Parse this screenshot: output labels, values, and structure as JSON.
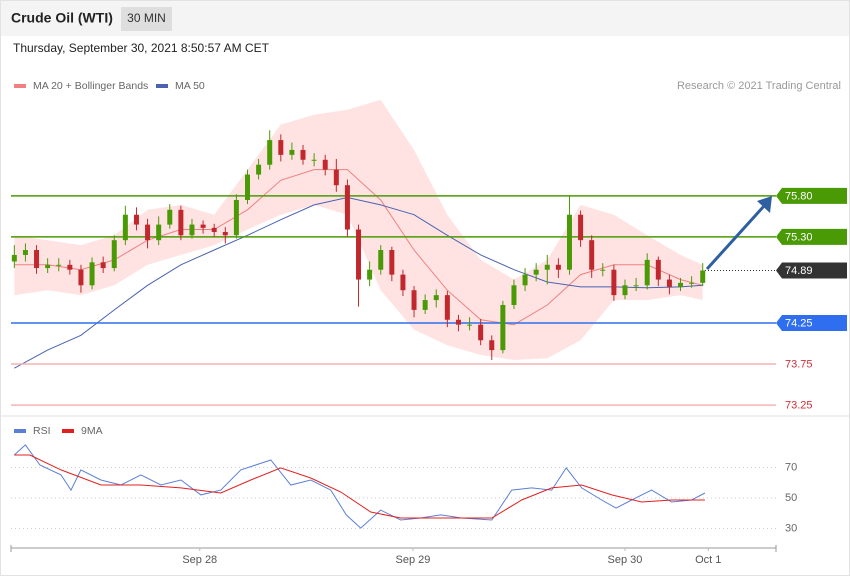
{
  "header": {
    "title": "Crude Oil (WTI)",
    "interval": "30 MIN",
    "timestamp": "Thursday, September 30, 2021 8:50:57 AM CET",
    "credit": "Research © 2021 Trading Central"
  },
  "chart_data": [
    {
      "type": "candlestick",
      "xlim": [
        -0.3,
        68.6
      ],
      "ylim": [
        73.19,
        77.7
      ],
      "up_color": "#4a9a06",
      "down_color": "#c0282d",
      "x": [
        0,
        1,
        2,
        3,
        4,
        5,
        6,
        7,
        8,
        9,
        10,
        11,
        12,
        13,
        14,
        15,
        16,
        17,
        18,
        19,
        20,
        21,
        22,
        23,
        24,
        25,
        26,
        27,
        28,
        29,
        30,
        31,
        32,
        33,
        34,
        35,
        36,
        37,
        38,
        39,
        40,
        41,
        42,
        43,
        44,
        45,
        46,
        47,
        48,
        49,
        50,
        51,
        52,
        53,
        54,
        55,
        56,
        57,
        58,
        59,
        60,
        61,
        62
      ],
      "open": [
        75.0,
        75.08,
        75.14,
        74.92,
        74.96,
        74.96,
        74.9,
        74.71,
        74.99,
        74.92,
        75.26,
        75.57,
        75.45,
        75.26,
        75.45,
        75.63,
        75.32,
        75.45,
        75.41,
        75.36,
        75.32,
        75.75,
        76.06,
        76.18,
        76.48,
        76.3,
        76.36,
        76.24,
        76.24,
        76.12,
        75.93,
        75.39,
        74.78,
        74.9,
        75.14,
        74.84,
        74.65,
        74.41,
        74.53,
        74.59,
        74.29,
        74.23,
        74.23,
        74.04,
        73.92,
        74.47,
        74.71,
        74.84,
        74.9,
        74.96,
        74.9,
        75.57,
        75.26,
        74.9,
        74.9,
        74.59,
        74.71,
        74.71,
        75.02,
        74.78,
        74.69,
        74.74,
        74.74
      ],
      "high": [
        75.2,
        75.22,
        75.2,
        75.04,
        75.04,
        75.02,
        74.96,
        75.05,
        75.06,
        75.32,
        75.68,
        75.66,
        75.52,
        75.55,
        75.7,
        75.68,
        75.52,
        75.5,
        75.46,
        75.42,
        75.82,
        76.12,
        76.25,
        76.6,
        76.55,
        76.45,
        76.42,
        76.32,
        76.3,
        76.25,
        76.0,
        75.45,
        75.0,
        75.2,
        75.18,
        74.9,
        74.7,
        74.6,
        74.66,
        74.64,
        74.35,
        74.32,
        74.3,
        74.1,
        74.52,
        74.78,
        74.92,
        74.98,
        75.08,
        75.04,
        75.8,
        75.62,
        75.32,
        74.98,
        74.96,
        74.78,
        74.8,
        75.1,
        75.06,
        74.84,
        74.8,
        74.82,
        74.98
      ],
      "low": [
        74.92,
        75.0,
        74.85,
        74.86,
        74.88,
        74.84,
        74.62,
        74.66,
        74.86,
        74.88,
        75.2,
        75.38,
        75.16,
        75.2,
        75.4,
        75.26,
        75.28,
        75.34,
        75.3,
        75.22,
        75.28,
        75.7,
        76.0,
        76.12,
        76.22,
        76.24,
        76.18,
        76.16,
        76.05,
        75.85,
        75.3,
        74.45,
        74.7,
        74.84,
        74.76,
        74.58,
        74.32,
        74.36,
        74.44,
        74.2,
        74.15,
        74.16,
        73.98,
        73.8,
        73.88,
        74.42,
        74.64,
        74.76,
        74.72,
        74.8,
        74.84,
        75.18,
        74.8,
        74.82,
        74.52,
        74.54,
        74.64,
        74.66,
        74.7,
        74.6,
        74.64,
        74.68,
        74.7
      ],
      "close": [
        75.08,
        75.14,
        74.92,
        74.96,
        74.96,
        74.9,
        74.71,
        74.99,
        74.92,
        75.26,
        75.57,
        75.45,
        75.26,
        75.45,
        75.63,
        75.32,
        75.45,
        75.41,
        75.36,
        75.32,
        75.75,
        76.06,
        76.18,
        76.48,
        76.3,
        76.36,
        76.24,
        76.24,
        76.12,
        75.93,
        75.39,
        74.78,
        74.9,
        75.14,
        74.84,
        74.65,
        74.41,
        74.53,
        74.59,
        74.29,
        74.23,
        74.23,
        74.04,
        73.92,
        74.47,
        74.71,
        74.84,
        74.9,
        74.96,
        74.9,
        75.57,
        75.26,
        74.9,
        74.9,
        74.59,
        74.71,
        74.71,
        75.02,
        74.78,
        74.69,
        74.74,
        74.74,
        74.89
      ],
      "overlays": [
        {
          "name": "MA 20 + Bollinger Bands",
          "color": "#f08080",
          "band_color": "#ffd9d9",
          "x": [
            0,
            3,
            6,
            9,
            12,
            15,
            18,
            21,
            24,
            27,
            30,
            33,
            36,
            39,
            42,
            45,
            48,
            51,
            54,
            57,
            60,
            62
          ],
          "values": [
            74.96,
            74.96,
            74.9,
            75.02,
            75.26,
            75.39,
            75.39,
            75.63,
            75.99,
            76.12,
            76.12,
            75.75,
            75.14,
            74.65,
            74.29,
            74.23,
            74.47,
            74.84,
            74.96,
            74.96,
            74.78,
            74.71
          ],
          "upper": [
            75.32,
            75.26,
            75.2,
            75.32,
            75.63,
            75.69,
            75.57,
            76.12,
            76.67,
            76.79,
            76.85,
            76.97,
            76.36,
            75.57,
            75.02,
            74.78,
            75.02,
            75.69,
            75.57,
            75.32,
            75.08,
            74.96
          ],
          "lower": [
            74.59,
            74.65,
            74.59,
            74.71,
            74.96,
            75.08,
            75.2,
            75.39,
            75.57,
            75.69,
            75.57,
            74.65,
            74.17,
            73.98,
            73.86,
            73.8,
            73.82,
            74.04,
            74.53,
            74.53,
            74.59,
            74.53
          ]
        },
        {
          "name": "MA 50",
          "color": "#4a62b0",
          "x": [
            0,
            3,
            6,
            9,
            12,
            15,
            18,
            21,
            24,
            27,
            30,
            33,
            36,
            39,
            42,
            45,
            48,
            51,
            54,
            57,
            60,
            62
          ],
          "values": [
            73.7,
            73.92,
            74.1,
            74.41,
            74.71,
            74.96,
            75.14,
            75.32,
            75.51,
            75.69,
            75.78,
            75.69,
            75.57,
            75.32,
            75.08,
            74.9,
            74.75,
            74.69,
            74.69,
            74.68,
            74.69,
            74.71
          ]
        }
      ],
      "levels": [
        {
          "value": 75.8,
          "label": "75.80",
          "color": "#4a9a06",
          "box": true
        },
        {
          "value": 75.3,
          "label": "75.30",
          "color": "#4a9a06",
          "box": true
        },
        {
          "value": 74.89,
          "color": "#333333",
          "box": true,
          "dotted": true
        },
        {
          "value": 74.25,
          "color": "#2f6fef",
          "box": true
        },
        {
          "value": 73.75,
          "color": "#f4b4b4",
          "text_color": "#d0303a",
          "box": false
        },
        {
          "value": 73.25,
          "color": "#f4b4b4",
          "text_color": "#d0303a",
          "box": false
        }
      ]
    },
    {
      "type": "line",
      "xlim": [
        -0.3,
        68.6
      ],
      "ylim": [
        19.2,
        88
      ],
      "yticks": [
        30,
        50,
        70
      ],
      "grid": true,
      "xticks": [
        {
          "value": 16.7,
          "label": "Sep 28"
        },
        {
          "value": 35.9,
          "label": "Sep 29"
        },
        {
          "value": 55.0,
          "label": "Sep 30"
        },
        {
          "value": 62.5,
          "label": "Oct 1"
        }
      ],
      "series": [
        {
          "name": "RSI",
          "color": "#5b7fd6",
          "x": [
            0,
            1,
            2.3,
            4.2,
            5.1,
            6,
            7.8,
            9.6,
            11.4,
            13.2,
            15,
            16.8,
            18.6,
            20.4,
            23.1,
            24.9,
            26.7,
            28.5,
            29.9,
            31.2,
            33,
            34.8,
            36.6,
            38.4,
            40.3,
            43,
            44.8,
            46.6,
            48.4,
            49.7,
            51.1,
            52.9,
            54.2,
            55.6,
            57.4,
            59.2,
            61,
            62.2
          ],
          "values": [
            78.2,
            84.8,
            71.6,
            65.1,
            55.2,
            68.4,
            61.8,
            58.5,
            65.1,
            58.5,
            61.8,
            52.0,
            55.2,
            68.4,
            74.9,
            58.5,
            61.8,
            55.2,
            38.9,
            30.3,
            42.1,
            35.6,
            36.9,
            38.9,
            36.9,
            35.6,
            55.2,
            56.6,
            55.2,
            69.7,
            56.6,
            48.7,
            43.4,
            48.7,
            55.2,
            47.4,
            48.7,
            53.3
          ]
        },
        {
          "name": "9MA",
          "color": "#e02020",
          "x": [
            0,
            1.4,
            4.2,
            7.8,
            11.4,
            15,
            18.6,
            21.3,
            24,
            26.7,
            29.4,
            32.1,
            34.8,
            38.4,
            43,
            45.7,
            48.4,
            51.1,
            53.8,
            56.5,
            59.2,
            62.2
          ],
          "values": [
            78.2,
            78.2,
            68.4,
            58.5,
            58.5,
            56.6,
            53.3,
            61.8,
            69.7,
            63.1,
            53.9,
            40.8,
            36.9,
            36.9,
            36.9,
            48.7,
            56.6,
            58.5,
            52.0,
            47.4,
            48.7,
            48.7
          ]
        }
      ]
    }
  ]
}
